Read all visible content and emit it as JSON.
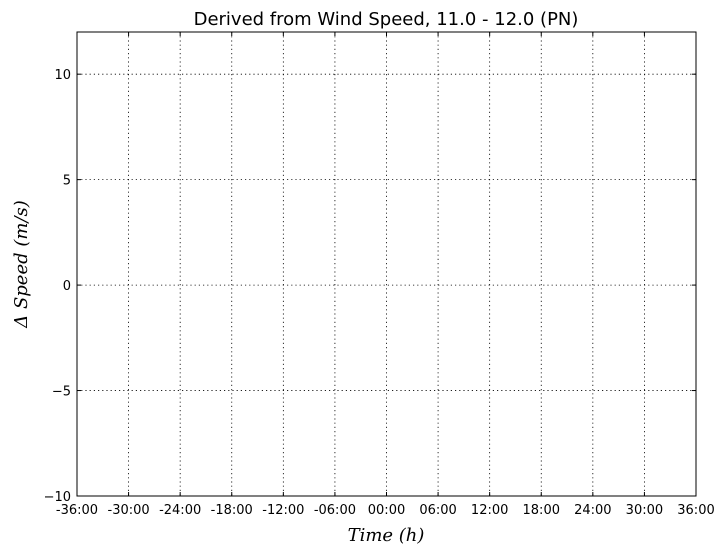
{
  "chart_data": {
    "type": "line",
    "title": "Derived from Wind Speed, 11.0 - 12.0 (PN)",
    "xlabel": "Time (h)",
    "ylabel": "Δ Speed (m/s)",
    "xlim": [
      -36,
      36
    ],
    "ylim": [
      -10,
      12
    ],
    "x_ticks": [
      -36,
      -30,
      -24,
      -18,
      -12,
      -6,
      0,
      6,
      12,
      18,
      24,
      30,
      36
    ],
    "x_tick_labels": [
      "-36:00",
      "-30:00",
      "-24:00",
      "-18:00",
      "-12:00",
      "-06:00",
      "00:00",
      "06:00",
      "12:00",
      "18:00",
      "24:00",
      "30:00",
      "36:00"
    ],
    "y_ticks": [
      -10,
      -5,
      0,
      5,
      10
    ],
    "y_tick_labels": [
      "−10",
      "−5",
      "0",
      "5",
      "10"
    ],
    "grid": true,
    "series": []
  }
}
